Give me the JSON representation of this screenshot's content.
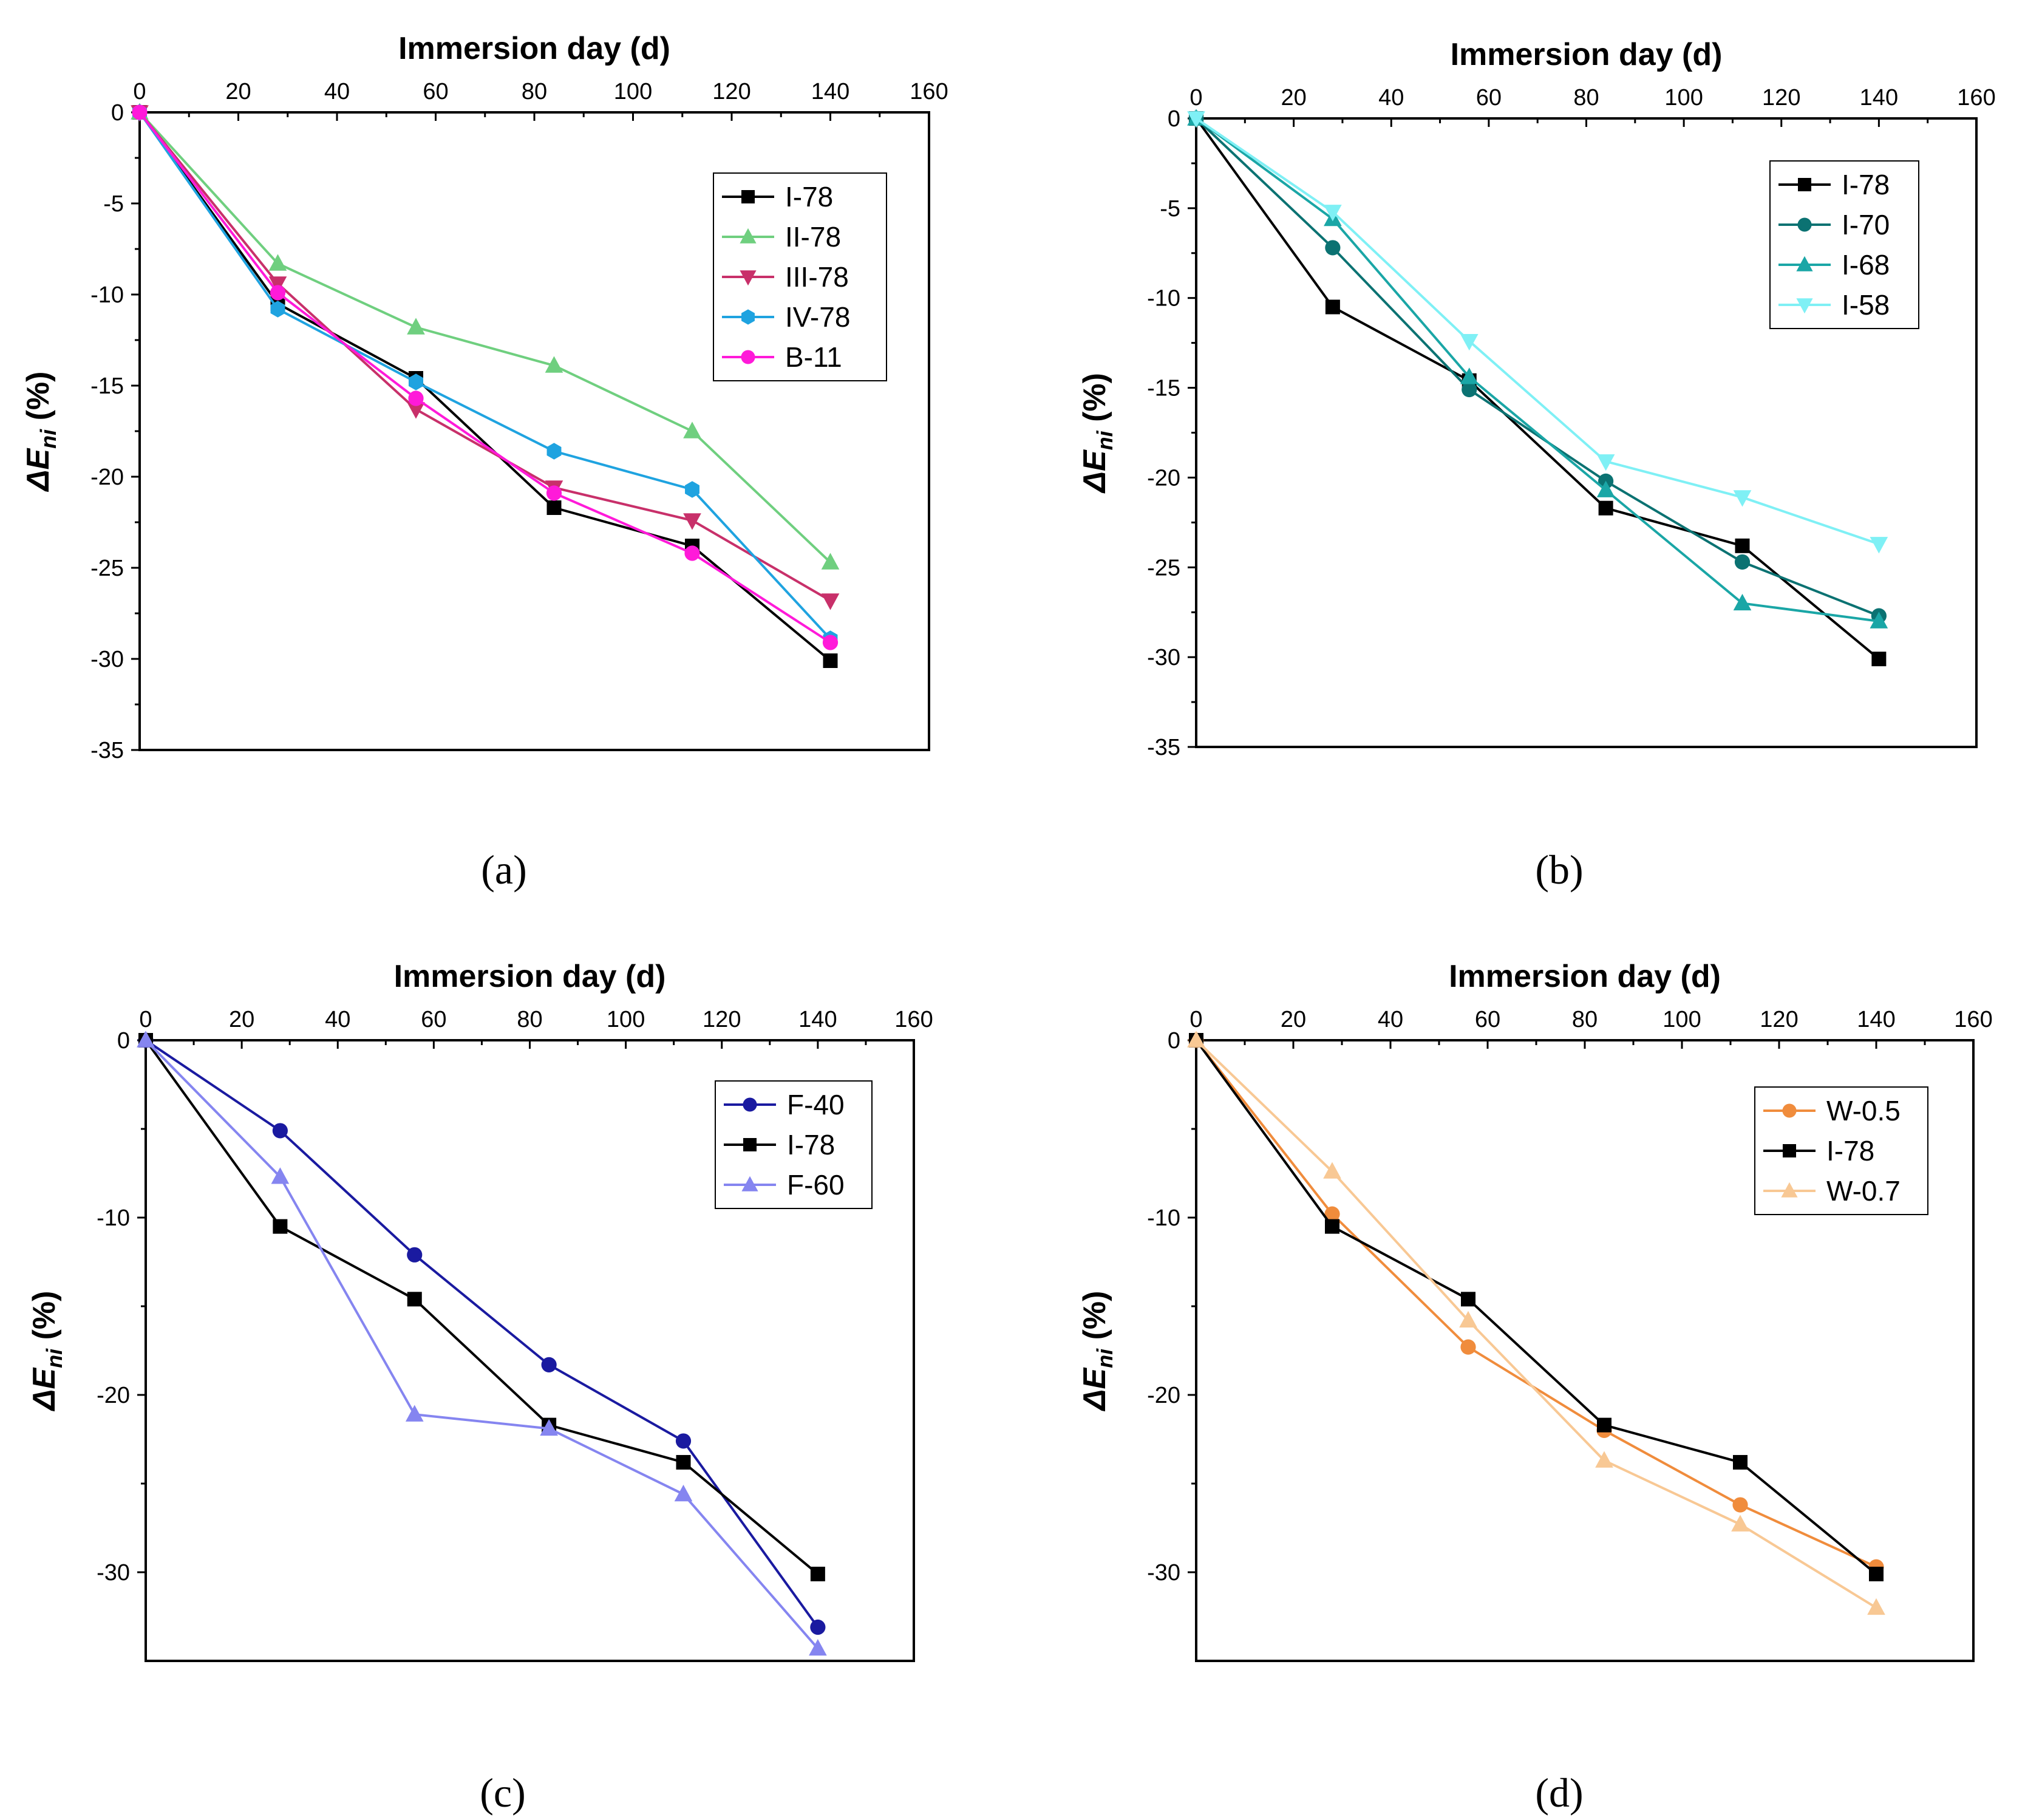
{
  "chart_data": [
    {
      "type": "line",
      "panel_label": "(a)",
      "xlabel": "Immersion day (d)",
      "ylabel_main": "ΔE",
      "ylabel_sub": "ni",
      "ylabel_unit": " (%)",
      "xlim": [
        0,
        160
      ],
      "ylim": [
        -35,
        0
      ],
      "xticks": [
        0,
        20,
        40,
        60,
        80,
        100,
        120,
        140,
        160
      ],
      "yticks": [
        0,
        -5,
        -10,
        -15,
        -20,
        -25,
        -30,
        -35
      ],
      "legend_position": "upper-right",
      "series": [
        {
          "name": "I-78",
          "color": "#000000",
          "marker": "square",
          "x": [
            0,
            28,
            56,
            84,
            112,
            140
          ],
          "y": [
            0,
            -10.5,
            -14.6,
            -21.7,
            -23.8,
            -30.1
          ]
        },
        {
          "name": "II-78",
          "color": "#6fcf7f",
          "marker": "triangle-up",
          "x": [
            0,
            28,
            56,
            84,
            112,
            140
          ],
          "y": [
            0,
            -8.3,
            -11.8,
            -13.9,
            -17.5,
            -24.7
          ]
        },
        {
          "name": "III-78",
          "color": "#c8306a",
          "marker": "triangle-down",
          "x": [
            0,
            28,
            56,
            84,
            112,
            140
          ],
          "y": [
            0,
            -9.4,
            -16.3,
            -20.6,
            -22.4,
            -26.8
          ]
        },
        {
          "name": "IV-78",
          "color": "#1fa3e0",
          "marker": "hexagon",
          "x": [
            0,
            28,
            56,
            84,
            112,
            140
          ],
          "y": [
            0,
            -10.8,
            -14.8,
            -18.6,
            -20.7,
            -28.9
          ]
        },
        {
          "name": "B-11",
          "color": "#ff1ad9",
          "marker": "circle",
          "x": [
            0,
            28,
            56,
            84,
            112,
            140
          ],
          "y": [
            0,
            -9.9,
            -15.7,
            -20.9,
            -24.2,
            -29.1
          ]
        }
      ]
    },
    {
      "type": "line",
      "panel_label": "(b)",
      "xlabel": "Immersion day (d)",
      "ylabel_main": "ΔE",
      "ylabel_sub": "ni",
      "ylabel_unit": " (%)",
      "xlim": [
        0,
        160
      ],
      "ylim": [
        -35,
        0
      ],
      "xticks": [
        0,
        20,
        40,
        60,
        80,
        100,
        120,
        140,
        160
      ],
      "yticks": [
        0,
        -5,
        -10,
        -15,
        -20,
        -25,
        -30,
        -35
      ],
      "legend_position": "upper-right",
      "series": [
        {
          "name": "I-78",
          "color": "#000000",
          "marker": "square",
          "x": [
            0,
            28,
            56,
            84,
            112,
            140
          ],
          "y": [
            0,
            -10.5,
            -14.6,
            -21.7,
            -23.8,
            -30.1
          ]
        },
        {
          "name": "I-70",
          "color": "#0b7272",
          "marker": "circle",
          "x": [
            0,
            28,
            56,
            84,
            112,
            140
          ],
          "y": [
            0,
            -7.2,
            -15.1,
            -20.2,
            -24.7,
            -27.7
          ]
        },
        {
          "name": "I-68",
          "color": "#1aa6a6",
          "marker": "triangle-up",
          "x": [
            0,
            28,
            56,
            84,
            112,
            140
          ],
          "y": [
            0,
            -5.6,
            -14.4,
            -20.7,
            -27.0,
            -28.0
          ]
        },
        {
          "name": "I-58",
          "color": "#7ff0f5",
          "marker": "triangle-down",
          "x": [
            0,
            28,
            56,
            84,
            112,
            140
          ],
          "y": [
            0,
            -5.2,
            -12.4,
            -19.1,
            -21.1,
            -23.7
          ]
        }
      ]
    },
    {
      "type": "line",
      "panel_label": "(c)",
      "xlabel": "Immersion day (d)",
      "ylabel_main": "ΔE",
      "ylabel_sub": "ni",
      "ylabel_unit": " (%)",
      "xlim": [
        0,
        160
      ],
      "ylim": [
        -35,
        0
      ],
      "xticks": [
        0,
        20,
        40,
        60,
        80,
        100,
        120,
        140,
        160
      ],
      "yticks": [
        0,
        -10,
        -20,
        -30
      ],
      "legend_position": "upper-right",
      "series": [
        {
          "name": "F-40",
          "color": "#1a1aa0",
          "marker": "circle",
          "x": [
            0,
            28,
            56,
            84,
            112,
            140
          ],
          "y": [
            0,
            -5.1,
            -12.1,
            -18.3,
            -22.6,
            -33.1
          ]
        },
        {
          "name": "I-78",
          "color": "#000000",
          "marker": "square",
          "x": [
            0,
            28,
            56,
            84,
            112,
            140
          ],
          "y": [
            0,
            -10.5,
            -14.6,
            -21.7,
            -23.8,
            -30.1
          ]
        },
        {
          "name": "F-60",
          "color": "#8585f0",
          "marker": "triangle-up",
          "x": [
            0,
            28,
            56,
            84,
            112,
            140
          ],
          "y": [
            0,
            -7.7,
            -21.1,
            -21.9,
            -25.6,
            -34.3
          ]
        }
      ]
    },
    {
      "type": "line",
      "panel_label": "(d)",
      "xlabel": "Immersion day (d)",
      "ylabel_main": "ΔE",
      "ylabel_sub": "ni",
      "ylabel_unit": " (%)",
      "xlim": [
        0,
        160
      ],
      "ylim": [
        -35,
        0
      ],
      "xticks": [
        0,
        20,
        40,
        60,
        80,
        100,
        120,
        140,
        160
      ],
      "yticks": [
        0,
        -10,
        -20,
        -30
      ],
      "legend_position": "upper-right",
      "series": [
        {
          "name": "W-0.5",
          "color": "#f08c3c",
          "marker": "circle",
          "x": [
            0,
            28,
            56,
            84,
            112,
            140
          ],
          "y": [
            0,
            -9.8,
            -17.3,
            -22.0,
            -26.2,
            -29.7
          ]
        },
        {
          "name": "I-78",
          "color": "#000000",
          "marker": "square",
          "x": [
            0,
            28,
            56,
            84,
            112,
            140
          ],
          "y": [
            0,
            -10.5,
            -14.6,
            -21.7,
            -23.8,
            -30.1
          ]
        },
        {
          "name": "W-0.7",
          "color": "#f8c894",
          "marker": "triangle-up",
          "x": [
            0,
            28,
            56,
            84,
            112,
            140
          ],
          "y": [
            0,
            -7.4,
            -15.8,
            -23.7,
            -27.3,
            -32.0
          ]
        }
      ]
    }
  ]
}
